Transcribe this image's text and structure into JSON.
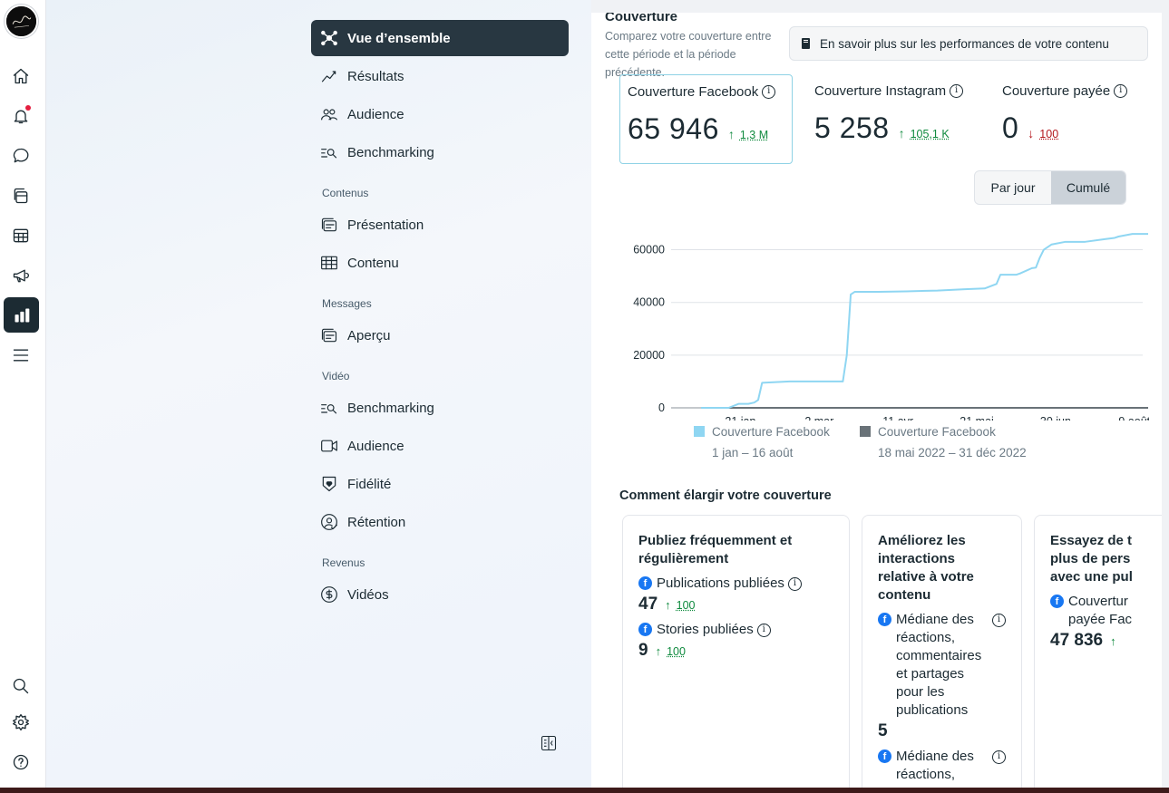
{
  "rail": {
    "icons": [
      "home-icon",
      "bell-icon",
      "chat-icon",
      "content-icon",
      "calendar-table-icon",
      "megaphone-icon",
      "insights-icon",
      "menu-icon",
      "search-icon",
      "settings-icon",
      "help-icon"
    ]
  },
  "nav": {
    "items": {
      "overview": "Vue d’ensemble",
      "results": "Résultats",
      "audience": "Audience",
      "benchmarking": "Benchmarking",
      "presentation": "Présentation",
      "content": "Contenu",
      "apercu": "Aperçu",
      "video_benchmarking": "Benchmarking",
      "video_audience": "Audience",
      "loyalty": "Fidélité",
      "retention": "Rétention",
      "videos": "Vidéos"
    },
    "sections": {
      "contents": "Contenus",
      "messages": "Messages",
      "video": "Vidéo",
      "revenue": "Revenus"
    }
  },
  "card": {
    "title": "Couverture",
    "subtitle": "Comparez votre couverture entre cette période et la période précédente.",
    "learn_more": "En savoir plus sur les performances de votre contenu"
  },
  "metrics": [
    {
      "label": "Couverture Facebook",
      "value": "65 946",
      "change": "1,3 M",
      "direction": "up"
    },
    {
      "label": "Couverture Instagram",
      "value": "5 258",
      "change": "105,1 K",
      "direction": "up"
    },
    {
      "label": "Couverture payée",
      "value": "0",
      "change": "100",
      "direction": "down"
    }
  ],
  "toggle": {
    "per_day": "Par jour",
    "cumulative": "Cumulé"
  },
  "chart_data": {
    "type": "line",
    "y_ticks": [
      "60000",
      "40000",
      "20000",
      "0"
    ],
    "x_ticks": [
      "21 jan",
      "2 mar",
      "11 avr",
      "21 mai",
      "30 jun",
      "9 août"
    ],
    "ylim": [
      0,
      65000
    ],
    "series": [
      {
        "name": "Couverture Facebook",
        "period": "1 jan – 16 août",
        "color": "#8fd6f2",
        "x": [
          "1 jan",
          "10 jan",
          "15 jan",
          "20 jan",
          "25 jan",
          "28 jan",
          "30 jan",
          "1 fév",
          "15 fév",
          "1 mar",
          "10 mar",
          "14 mar",
          "16 mar",
          "18 mar",
          "20 mar",
          "1 avr",
          "15 avr",
          "1 mai",
          "15 mai",
          "25 mai",
          "31 mai",
          "2 jun",
          "10 jun",
          "12 jun",
          "18 jun",
          "20 jun",
          "22 jun",
          "24 jun",
          "28 jun",
          "5 juil",
          "15 juil",
          "25 juil",
          "30 juil",
          "1 août",
          "8 août",
          "16 août"
        ],
        "values": [
          0,
          0,
          0,
          1500,
          1500,
          2000,
          3000,
          9500,
          10000,
          10000,
          10000,
          10000,
          20000,
          43000,
          44000,
          44000,
          44200,
          44500,
          45000,
          45300,
          47000,
          50500,
          50500,
          51000,
          53000,
          53200,
          57000,
          60000,
          62000,
          63000,
          63000,
          64000,
          64500,
          65000,
          66000,
          66000
        ]
      },
      {
        "name": "Couverture Facebook",
        "period": "18 mai 2022 – 31 déc 2022",
        "color": "#697278",
        "x": [
          "1 jan",
          "16 août"
        ],
        "values": [
          0,
          0
        ]
      }
    ]
  },
  "howto": {
    "title": "Comment élargir votre couverture",
    "tips": [
      {
        "title": "Publiez fréquemment et régulièrement",
        "rows": [
          {
            "label": "Publications publiées",
            "value": "47",
            "change": "100"
          },
          {
            "label": "Stories publiées",
            "value": "9",
            "change": "100"
          }
        ]
      },
      {
        "title": "Améliorez les interactions relative à votre contenu",
        "rows": [
          {
            "label": "Médiane des réactions, commentaires et partages pour les publications",
            "value": "5"
          },
          {
            "label": "Médiane des réactions,",
            "value": ""
          }
        ]
      },
      {
        "title": "Essayez de t plus de pers avec une pul",
        "rows": [
          {
            "label": "Couvertur payée Fac",
            "value": "47 836",
            "change": ""
          }
        ]
      }
    ]
  }
}
